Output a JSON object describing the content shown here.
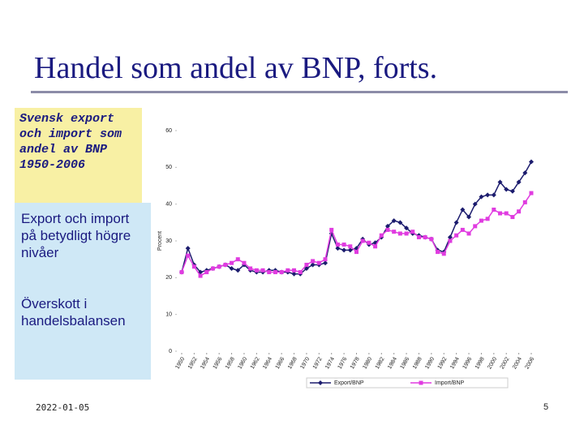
{
  "slide": {
    "title": "Handel som andel av BNP, forts.",
    "caption": "Svensk export och import som andel av BNP 1950-2006",
    "points": [
      "Export och import på betydligt högre nivåer",
      "Överskott i handelsbalansen"
    ],
    "date": "2022-01-05",
    "page": "5"
  },
  "chart_data": {
    "type": "line",
    "y_label": "Procent",
    "legend": "bottom",
    "x": [
      1950,
      1951,
      1952,
      1953,
      1954,
      1955,
      1956,
      1957,
      1958,
      1959,
      1960,
      1961,
      1962,
      1963,
      1964,
      1965,
      1966,
      1967,
      1968,
      1969,
      1970,
      1971,
      1972,
      1973,
      1974,
      1975,
      1976,
      1977,
      1978,
      1979,
      1980,
      1981,
      1982,
      1983,
      1984,
      1985,
      1986,
      1987,
      1988,
      1989,
      1990,
      1991,
      1992,
      1993,
      1994,
      1995,
      1996,
      1997,
      1998,
      1999,
      2000,
      2001,
      2002,
      2003,
      2004,
      2005,
      2006
    ],
    "xlim": [
      1950,
      2006
    ],
    "xticks": [
      1950,
      1952,
      1954,
      1956,
      1958,
      1960,
      1962,
      1964,
      1966,
      1968,
      1970,
      1972,
      1974,
      1976,
      1978,
      1980,
      1982,
      1984,
      1986,
      1988,
      1990,
      1992,
      1994,
      1996,
      1998,
      2000,
      2002,
      2004,
      2006
    ],
    "ylim": [
      0,
      60
    ],
    "yticks": [
      0,
      10,
      20,
      30,
      40,
      50,
      60
    ],
    "series": [
      {
        "name": "Export/BNP",
        "color": "#1c1c6e",
        "marker": "diamond",
        "values": [
          21.5,
          28.0,
          23.5,
          21.5,
          22.0,
          22.5,
          23.0,
          23.5,
          22.5,
          22.0,
          23.5,
          22.0,
          21.5,
          21.5,
          22.0,
          22.0,
          21.5,
          21.5,
          21.0,
          21.0,
          22.5,
          23.5,
          23.5,
          24.0,
          32.0,
          28.0,
          27.5,
          27.5,
          28.0,
          30.5,
          29.0,
          29.5,
          31.0,
          34.0,
          35.5,
          35.0,
          33.5,
          32.0,
          31.5,
          31.0,
          30.5,
          27.5,
          27.0,
          31.0,
          35.0,
          38.5,
          36.5,
          40.0,
          42.0,
          42.5,
          42.5,
          46.0,
          44.0,
          43.5,
          46.0,
          48.5,
          51.5
        ]
      },
      {
        "name": "Import/BNP",
        "color": "#e03ce0",
        "marker": "square",
        "values": [
          21.5,
          26.0,
          23.0,
          20.5,
          21.5,
          22.5,
          23.0,
          23.5,
          24.0,
          25.0,
          24.0,
          22.5,
          22.0,
          22.0,
          21.5,
          21.5,
          21.5,
          22.0,
          22.0,
          21.5,
          23.5,
          24.5,
          24.0,
          25.0,
          33.0,
          29.0,
          29.0,
          28.5,
          27.0,
          30.0,
          29.5,
          28.5,
          31.5,
          33.0,
          32.5,
          32.0,
          32.0,
          32.5,
          31.0,
          31.0,
          30.5,
          27.0,
          26.5,
          30.0,
          31.5,
          33.0,
          32.0,
          34.0,
          35.5,
          36.0,
          38.5,
          37.5,
          37.5,
          36.5,
          38.0,
          40.5,
          43.0
        ]
      }
    ]
  }
}
